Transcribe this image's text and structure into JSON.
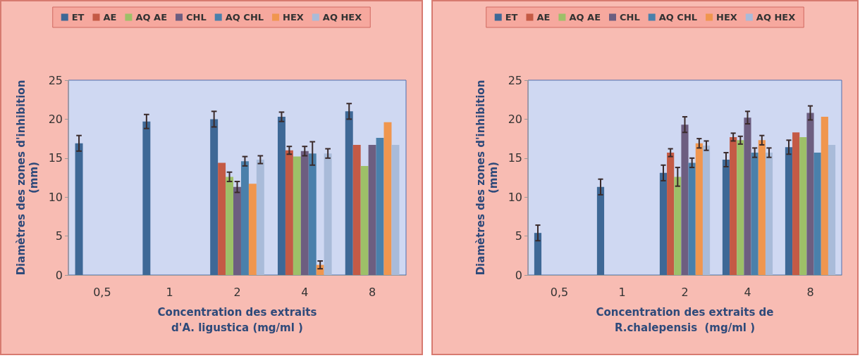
{
  "chart_data": [
    {
      "type": "bar",
      "xlabel": "Concentration des extraits\nd'A. ligustica (mg/ml )",
      "ylabel": "Diamètres des zones d'inhibition\n(mm)",
      "categories": [
        "0,5",
        "1",
        "2",
        "4",
        "8"
      ],
      "ylim": [
        0,
        25
      ],
      "yticks": [
        0,
        5,
        10,
        15,
        20,
        25
      ],
      "grid": false,
      "legend": "top",
      "series": [
        {
          "name": "ET",
          "color": "#3e6896",
          "values": [
            16.9,
            19.7,
            20.0,
            20.3,
            21.0
          ],
          "errors": [
            1,
            0.9,
            1,
            0.6,
            1
          ]
        },
        {
          "name": "AE",
          "color": "#c45a45",
          "values": [
            null,
            null,
            14.4,
            16.0,
            16.7
          ],
          "errors": [
            null,
            null,
            null,
            0.5,
            null
          ]
        },
        {
          "name": "AQ AE",
          "color": "#9dc068",
          "values": [
            null,
            null,
            12.6,
            15.2,
            14.0
          ],
          "errors": [
            null,
            null,
            0.6,
            null,
            null
          ]
        },
        {
          "name": "CHL",
          "color": "#6d5e80",
          "values": [
            null,
            null,
            11.3,
            15.9,
            16.7
          ],
          "errors": [
            null,
            null,
            0.7,
            0.6,
            null
          ]
        },
        {
          "name": "AQ CHL",
          "color": "#4a80ab",
          "values": [
            null,
            null,
            14.6,
            15.6,
            17.6
          ],
          "errors": [
            null,
            null,
            0.6,
            1.5,
            null
          ]
        },
        {
          "name": "HEX",
          "color": "#f0964e",
          "values": [
            null,
            null,
            11.7,
            1.3,
            19.6
          ],
          "errors": [
            null,
            null,
            null,
            0.5,
            null
          ]
        },
        {
          "name": "AQ HEX",
          "color": "#a9bbd9",
          "values": [
            null,
            null,
            14.8,
            15.6,
            16.7
          ],
          "errors": [
            null,
            null,
            0.5,
            0.6,
            null
          ]
        }
      ]
    },
    {
      "type": "bar",
      "xlabel": "Concentration des extraits de\nR.chalepensis  (mg/ml )",
      "ylabel": "Diamètres des zones d'inhibition\n(mm)",
      "categories": [
        "0,5",
        "1",
        "2",
        "4",
        "8"
      ],
      "ylim": [
        0,
        25
      ],
      "yticks": [
        0,
        5,
        10,
        15,
        20,
        25
      ],
      "grid": false,
      "legend": "top",
      "series": [
        {
          "name": "ET",
          "color": "#3e6896",
          "values": [
            5.4,
            11.3,
            13.1,
            14.8,
            16.4
          ],
          "errors": [
            1,
            1,
            1,
            0.9,
            0.9
          ]
        },
        {
          "name": "AE",
          "color": "#c45a45",
          "values": [
            null,
            null,
            15.7,
            17.7,
            18.3
          ],
          "errors": [
            null,
            null,
            0.5,
            0.5,
            null
          ]
        },
        {
          "name": "AQ AE",
          "color": "#9dc068",
          "values": [
            null,
            null,
            12.6,
            17.3,
            17.7
          ],
          "errors": [
            null,
            null,
            1.2,
            0.5,
            null
          ]
        },
        {
          "name": "CHL",
          "color": "#6d5e80",
          "values": [
            null,
            null,
            19.3,
            20.2,
            20.8
          ],
          "errors": [
            null,
            null,
            1,
            0.8,
            0.9
          ]
        },
        {
          "name": "AQ CHL",
          "color": "#4a80ab",
          "values": [
            null,
            null,
            14.4,
            15.7,
            15.7
          ],
          "errors": [
            null,
            null,
            0.6,
            0.6,
            null
          ]
        },
        {
          "name": "HEX",
          "color": "#f0964e",
          "values": [
            null,
            null,
            16.9,
            17.3,
            20.3
          ],
          "errors": [
            null,
            null,
            0.6,
            0.6,
            null
          ]
        },
        {
          "name": "AQ HEX",
          "color": "#a9bbd9",
          "values": [
            null,
            null,
            16.6,
            15.7,
            16.7
          ],
          "errors": [
            null,
            null,
            0.6,
            0.6,
            null
          ]
        }
      ]
    }
  ]
}
